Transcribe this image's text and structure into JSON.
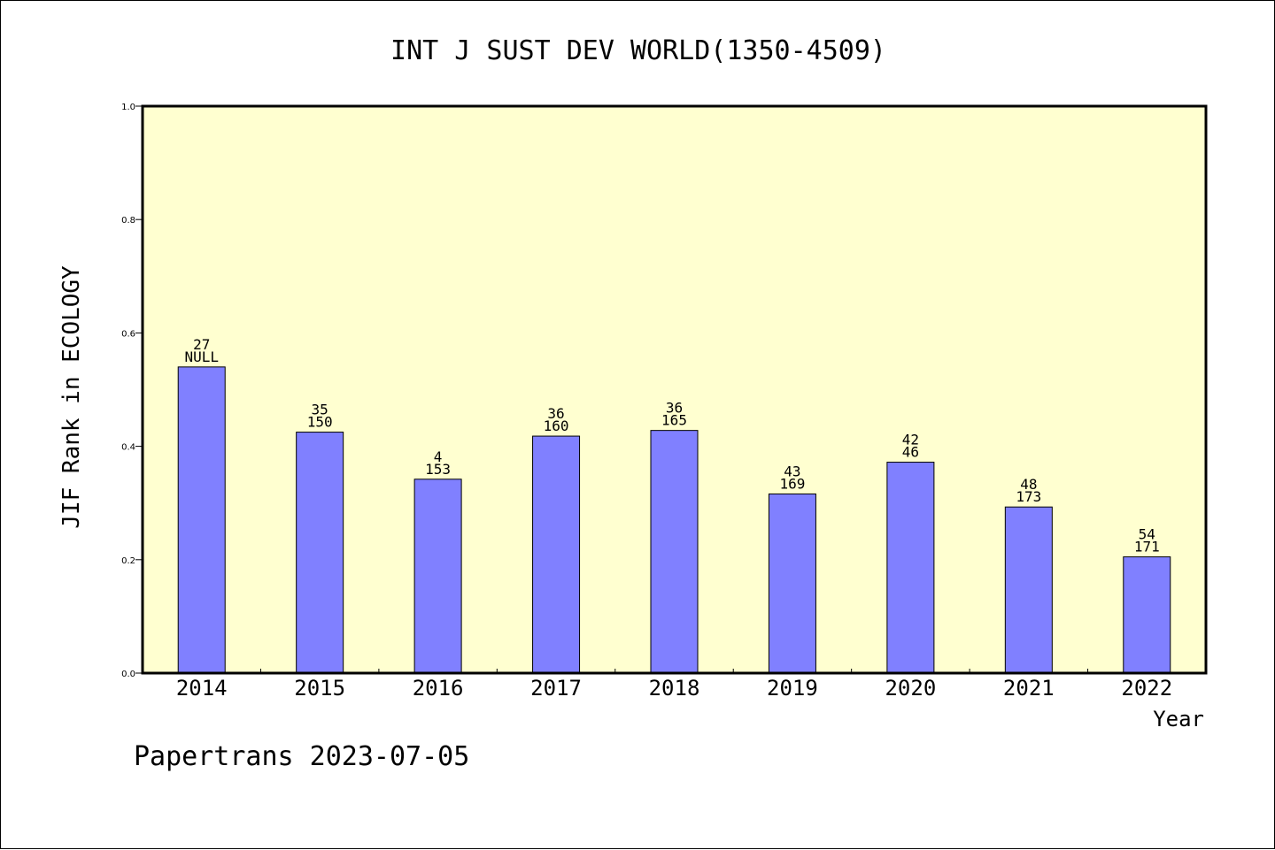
{
  "chart_data": {
    "type": "bar",
    "title": "INT J SUST DEV WORLD(1350-4509)",
    "xlabel": "Year",
    "ylabel": "JIF Rank in ECOLOGY",
    "ylim": [
      0,
      1.0
    ],
    "yticks": [
      "0.0",
      "0.2",
      "0.4",
      "0.6",
      "0.8",
      "1.0"
    ],
    "ytick_values": [
      0.0,
      0.2,
      0.4,
      0.6,
      0.8,
      1.0
    ],
    "categories": [
      "2014",
      "2015",
      "2016",
      "2017",
      "2018",
      "2019",
      "2020",
      "2021",
      "2022"
    ],
    "values": [
      0.54,
      0.425,
      0.342,
      0.418,
      0.428,
      0.316,
      0.372,
      0.293,
      0.205
    ],
    "labels_top": [
      "27",
      "35",
      "4",
      "36",
      "36",
      "43",
      "42",
      "48",
      "54"
    ],
    "labels_bottom": [
      "NULL",
      "150",
      "153",
      "160",
      "165",
      "169",
      "46",
      "173",
      "171"
    ],
    "bar_color": "#8080ff",
    "plot_background": "#ffffd0",
    "grid": false,
    "footer": "Papertrans 2023-07-05"
  }
}
